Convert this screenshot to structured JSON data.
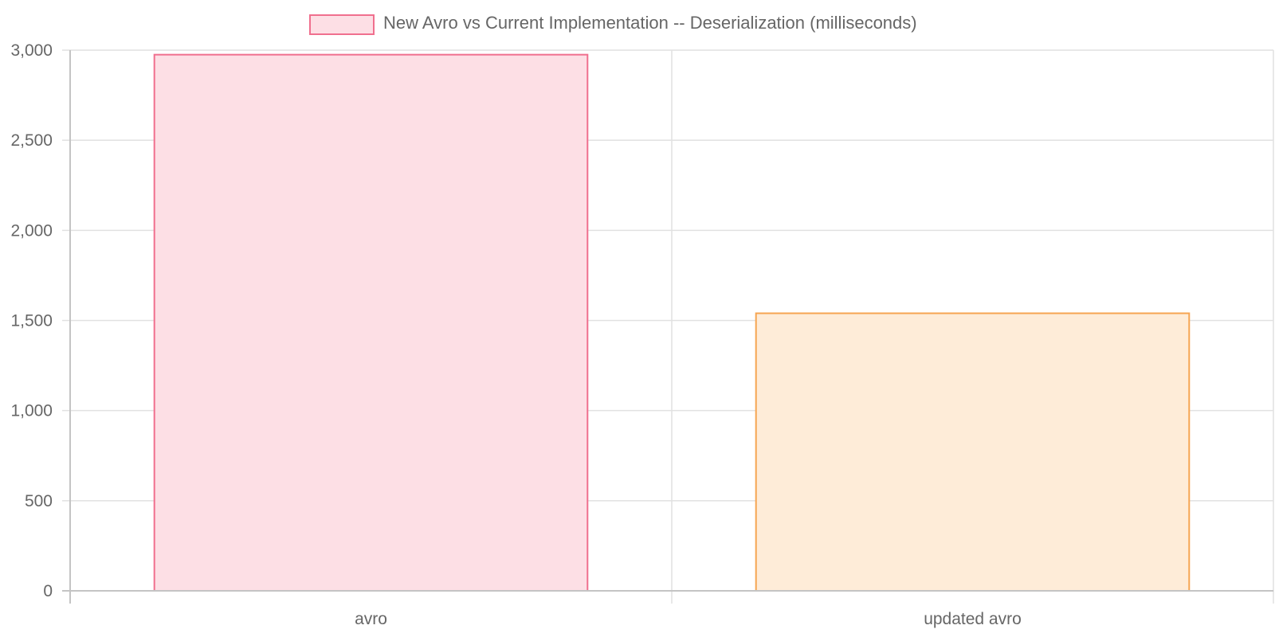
{
  "chart_data": {
    "type": "bar",
    "categories": [
      "avro",
      "updated avro"
    ],
    "series": [
      {
        "name": "New Avro vs Current Implementation -- Deserialization (milliseconds)",
        "values": [
          2975,
          1540
        ]
      }
    ],
    "bar_fill_colors": [
      "#fddfe5",
      "#feecd8"
    ],
    "bar_border_colors": [
      "#f06f8e",
      "#f6a552"
    ],
    "legend_box_fill": "#fddfe5",
    "legend_box_border": "#f06f8e",
    "ylim": [
      0,
      3000
    ],
    "y_ticks": [
      0,
      500,
      1000,
      1500,
      2000,
      2500,
      3000
    ],
    "y_tick_labels": [
      "0",
      "500",
      "1,000",
      "1,500",
      "2,000",
      "2,500",
      "3,000"
    ],
    "legend_position": "top",
    "grid": true
  }
}
